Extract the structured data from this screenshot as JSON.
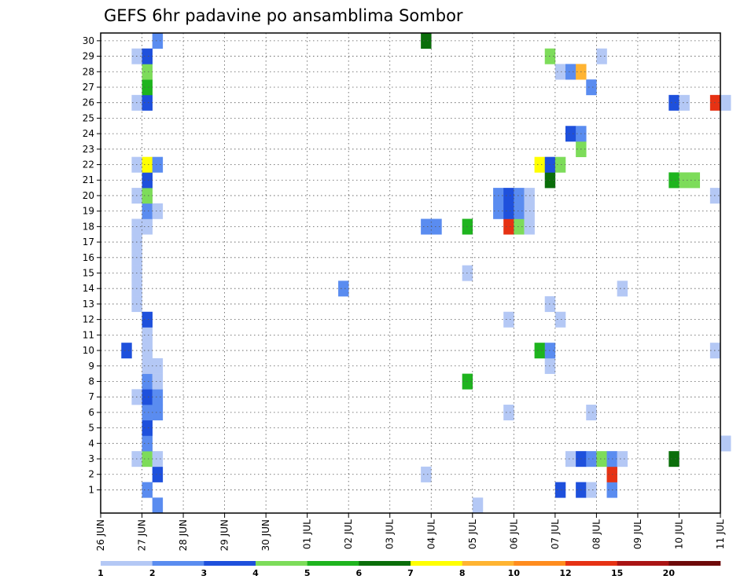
{
  "chart_data": {
    "type": "heatmap",
    "title": "GEFS 6hr padavine po ansamblima Sombor",
    "xlabel": "",
    "ylabel": "",
    "y_categories": [
      "1",
      "2",
      "3",
      "4",
      "5",
      "6",
      "7",
      "8",
      "9",
      "10",
      "11",
      "12",
      "13",
      "14",
      "15",
      "16",
      "17",
      "18",
      "19",
      "20",
      "21",
      "22",
      "23",
      "24",
      "25",
      "26",
      "27",
      "28",
      "29",
      "30"
    ],
    "x_ticks": [
      "26 JUN",
      "27 JUN",
      "28 JUN",
      "29 JUN",
      "30 JUN",
      "01 JUL",
      "02 JUL",
      "03 JUL",
      "04 JUL",
      "05 JUL",
      "06 JUL",
      "07 JUL",
      "08 JUL",
      "09 JUL",
      "10 JUL",
      "11 JUL"
    ],
    "x_step_hours": 6,
    "grid": true,
    "colorbar": {
      "levels": [
        "1",
        "2",
        "3",
        "4",
        "5",
        "6",
        "7",
        "8",
        "10",
        "12",
        "15",
        "20"
      ],
      "colors": [
        "#b4c8f5",
        "#5a8cf0",
        "#1e50dc",
        "#7ddc5a",
        "#1eb41e",
        "#0a6e0a",
        "#ffff00",
        "#ffb432",
        "#ff8c1e",
        "#e63214",
        "#aa1414",
        "#6e0a0a"
      ]
    },
    "cells": [
      {
        "member": 1,
        "day": "27 JUN",
        "step": 0,
        "value": 2,
        "color_index": 1
      },
      {
        "member": 1,
        "day": "07 JUL",
        "step": 0,
        "value": 3,
        "color_index": 2
      },
      {
        "member": 1,
        "day": "07 JUL",
        "step": 2,
        "value": 3,
        "color_index": 2
      },
      {
        "member": 1,
        "day": "07 JUL",
        "step": 3,
        "value": 1,
        "color_index": 0
      },
      {
        "member": 1,
        "day": "08 JUL",
        "step": 1,
        "value": 2,
        "color_index": 1
      },
      {
        "member": 2,
        "day": "27 JUN",
        "step": 1,
        "value": 3,
        "color_index": 2
      },
      {
        "member": 2,
        "day": "03 JUL",
        "step": 3,
        "value": 1,
        "color_index": 0
      },
      {
        "member": 2,
        "day": "08 JUL",
        "step": 1,
        "value": 12,
        "color_index": 9
      },
      {
        "member": 3,
        "day": "26 JUN",
        "step": 3,
        "value": 1,
        "color_index": 0
      },
      {
        "member": 3,
        "day": "27 JUN",
        "step": 0,
        "value": 4,
        "color_index": 3
      },
      {
        "member": 3,
        "day": "27 JUN",
        "step": 1,
        "value": 1,
        "color_index": 0
      },
      {
        "member": 3,
        "day": "07 JUL",
        "step": 1,
        "value": 1,
        "color_index": 0
      },
      {
        "member": 3,
        "day": "07 JUL",
        "step": 2,
        "value": 3,
        "color_index": 2
      },
      {
        "member": 3,
        "day": "07 JUL",
        "step": 3,
        "value": 2,
        "color_index": 1
      },
      {
        "member": 3,
        "day": "08 JUL",
        "step": 0,
        "value": 4,
        "color_index": 3
      },
      {
        "member": 3,
        "day": "08 JUL",
        "step": 1,
        "value": 2,
        "color_index": 1
      },
      {
        "member": 3,
        "day": "08 JUL",
        "step": 2,
        "value": 1,
        "color_index": 0
      },
      {
        "member": 3,
        "day": "09 JUL",
        "step": 3,
        "value": 6,
        "color_index": 5
      },
      {
        "member": 4,
        "day": "27 JUN",
        "step": 0,
        "value": 2,
        "color_index": 1
      },
      {
        "member": 4,
        "day": "11 JUL",
        "step": 0,
        "value": 1,
        "color_index": 0
      },
      {
        "member": 5,
        "day": "27 JUN",
        "step": 0,
        "value": 3,
        "color_index": 2
      },
      {
        "member": 6,
        "day": "27 JUN",
        "step": 0,
        "value": 2,
        "color_index": 1
      },
      {
        "member": 6,
        "day": "27 JUN",
        "step": 1,
        "value": 2,
        "color_index": 1
      },
      {
        "member": 6,
        "day": "05 JUL",
        "step": 3,
        "value": 1,
        "color_index": 0
      },
      {
        "member": 6,
        "day": "07 JUL",
        "step": 3,
        "value": 1,
        "color_index": 0
      },
      {
        "member": 7,
        "day": "26 JUN",
        "step": 3,
        "value": 1,
        "color_index": 0
      },
      {
        "member": 7,
        "day": "27 JUN",
        "step": 0,
        "value": 3,
        "color_index": 2
      },
      {
        "member": 7,
        "day": "27 JUN",
        "step": 1,
        "value": 2,
        "color_index": 1
      },
      {
        "member": 8,
        "day": "27 JUN",
        "step": 0,
        "value": 2,
        "color_index": 1
      },
      {
        "member": 8,
        "day": "27 JUN",
        "step": 1,
        "value": 1,
        "color_index": 0
      },
      {
        "member": 8,
        "day": "04 JUL",
        "step": 3,
        "value": 5,
        "color_index": 4
      },
      {
        "member": 9,
        "day": "27 JUN",
        "step": 0,
        "value": 1,
        "color_index": 0
      },
      {
        "member": 9,
        "day": "27 JUN",
        "step": 1,
        "value": 1,
        "color_index": 0
      },
      {
        "member": 9,
        "day": "06 JUL",
        "step": 3,
        "value": 1,
        "color_index": 0
      },
      {
        "member": 10,
        "day": "26 JUN",
        "step": 2,
        "value": 3,
        "color_index": 2
      },
      {
        "member": 10,
        "day": "27 JUN",
        "step": 0,
        "value": 1,
        "color_index": 0
      },
      {
        "member": 10,
        "day": "06 JUL",
        "step": 2,
        "value": 5,
        "color_index": 4
      },
      {
        "member": 10,
        "day": "06 JUL",
        "step": 3,
        "value": 2,
        "color_index": 1
      },
      {
        "member": 10,
        "day": "10 JUL",
        "step": 3,
        "value": 1,
        "color_index": 0
      },
      {
        "member": 11,
        "day": "27 JUN",
        "step": 0,
        "value": 1,
        "color_index": 0
      },
      {
        "member": 12,
        "day": "27 JUN",
        "step": 0,
        "value": 3,
        "color_index": 2
      },
      {
        "member": 12,
        "day": "05 JUL",
        "step": 3,
        "value": 1,
        "color_index": 0
      },
      {
        "member": 12,
        "day": "07 JUL",
        "step": 0,
        "value": 1,
        "color_index": 0
      },
      {
        "member": 13,
        "day": "26 JUN",
        "step": 3,
        "value": 1,
        "color_index": 0
      },
      {
        "member": 13,
        "day": "06 JUL",
        "step": 3,
        "value": 1,
        "color_index": 0
      },
      {
        "member": 14,
        "day": "26 JUN",
        "step": 3,
        "value": 1,
        "color_index": 0
      },
      {
        "member": 14,
        "day": "01 JUL",
        "step": 3,
        "value": 2,
        "color_index": 1
      },
      {
        "member": 14,
        "day": "08 JUL",
        "step": 2,
        "value": 1,
        "color_index": 0
      },
      {
        "member": 15,
        "day": "26 JUN",
        "step": 3,
        "value": 1,
        "color_index": 0
      },
      {
        "member": 15,
        "day": "04 JUL",
        "step": 3,
        "value": 1,
        "color_index": 0
      },
      {
        "member": 16,
        "day": "26 JUN",
        "step": 3,
        "value": 1,
        "color_index": 0
      },
      {
        "member": 17,
        "day": "26 JUN",
        "step": 3,
        "value": 1,
        "color_index": 0
      },
      {
        "member": 18,
        "day": "26 JUN",
        "step": 3,
        "value": 1,
        "color_index": 0
      },
      {
        "member": 18,
        "day": "27 JUN",
        "step": 0,
        "value": 1,
        "color_index": 0
      },
      {
        "member": 18,
        "day": "03 JUL",
        "step": 3,
        "value": 2,
        "color_index": 1
      },
      {
        "member": 18,
        "day": "04 JUL",
        "step": 0,
        "value": 2,
        "color_index": 1
      },
      {
        "member": 18,
        "day": "04 JUL",
        "step": 3,
        "value": 5,
        "color_index": 4
      },
      {
        "member": 18,
        "day": "05 JUL",
        "step": 3,
        "value": 12,
        "color_index": 9
      },
      {
        "member": 18,
        "day": "06 JUL",
        "step": 0,
        "value": 4,
        "color_index": 3
      },
      {
        "member": 18,
        "day": "06 JUL",
        "step": 1,
        "value": 1,
        "color_index": 0
      },
      {
        "member": 19,
        "day": "27 JUN",
        "step": 0,
        "value": 2,
        "color_index": 1
      },
      {
        "member": 19,
        "day": "27 JUN",
        "step": 1,
        "value": 1,
        "color_index": 0
      },
      {
        "member": 19,
        "day": "05 JUL",
        "step": 2,
        "value": 2,
        "color_index": 1
      },
      {
        "member": 19,
        "day": "05 JUL",
        "step": 3,
        "value": 3,
        "color_index": 2
      },
      {
        "member": 19,
        "day": "06 JUL",
        "step": 0,
        "value": 2,
        "color_index": 1
      },
      {
        "member": 19,
        "day": "06 JUL",
        "step": 1,
        "value": 1,
        "color_index": 0
      },
      {
        "member": 20,
        "day": "26 JUN",
        "step": 3,
        "value": 1,
        "color_index": 0
      },
      {
        "member": 20,
        "day": "27 JUN",
        "step": 0,
        "value": 4,
        "color_index": 3
      },
      {
        "member": 20,
        "day": "05 JUL",
        "step": 2,
        "value": 2,
        "color_index": 1
      },
      {
        "member": 20,
        "day": "05 JUL",
        "step": 3,
        "value": 3,
        "color_index": 2
      },
      {
        "member": 20,
        "day": "06 JUL",
        "step": 0,
        "value": 2,
        "color_index": 1
      },
      {
        "member": 20,
        "day": "06 JUL",
        "step": 1,
        "value": 1,
        "color_index": 0
      },
      {
        "member": 20,
        "day": "10 JUL",
        "step": 3,
        "value": 1,
        "color_index": 0
      },
      {
        "member": 21,
        "day": "27 JUN",
        "step": 0,
        "value": 3,
        "color_index": 2
      },
      {
        "member": 21,
        "day": "06 JUL",
        "step": 3,
        "value": 6,
        "color_index": 5
      },
      {
        "member": 21,
        "day": "09 JUL",
        "step": 3,
        "value": 5,
        "color_index": 4
      },
      {
        "member": 21,
        "day": "10 JUL",
        "step": 0,
        "value": 4,
        "color_index": 3
      },
      {
        "member": 21,
        "day": "10 JUL",
        "step": 1,
        "value": 4,
        "color_index": 3
      },
      {
        "member": 22,
        "day": "26 JUN",
        "step": 3,
        "value": 1,
        "color_index": 0
      },
      {
        "member": 22,
        "day": "27 JUN",
        "step": 0,
        "value": 7,
        "color_index": 6
      },
      {
        "member": 22,
        "day": "27 JUN",
        "step": 1,
        "value": 2,
        "color_index": 1
      },
      {
        "member": 22,
        "day": "06 JUL",
        "step": 2,
        "value": 7,
        "color_index": 6
      },
      {
        "member": 22,
        "day": "06 JUL",
        "step": 3,
        "value": 3,
        "color_index": 2
      },
      {
        "member": 22,
        "day": "07 JUL",
        "step": 0,
        "value": 4,
        "color_index": 3
      },
      {
        "member": 23,
        "day": "07 JUL",
        "step": 2,
        "value": 4,
        "color_index": 3
      },
      {
        "member": 24,
        "day": "07 JUL",
        "step": 1,
        "value": 3,
        "color_index": 2
      },
      {
        "member": 24,
        "day": "07 JUL",
        "step": 2,
        "value": 2,
        "color_index": 1
      },
      {
        "member": 26,
        "day": "26 JUN",
        "step": 3,
        "value": 1,
        "color_index": 0
      },
      {
        "member": 26,
        "day": "27 JUN",
        "step": 0,
        "value": 3,
        "color_index": 2
      },
      {
        "member": 26,
        "day": "09 JUL",
        "step": 3,
        "value": 3,
        "color_index": 2
      },
      {
        "member": 26,
        "day": "10 JUL",
        "step": 0,
        "value": 1,
        "color_index": 0
      },
      {
        "member": 26,
        "day": "10 JUL",
        "step": 3,
        "value": 12,
        "color_index": 9
      },
      {
        "member": 26,
        "day": "11 JUL",
        "step": 0,
        "value": 1,
        "color_index": 0
      },
      {
        "member": 27,
        "day": "27 JUN",
        "step": 0,
        "value": 5,
        "color_index": 4
      },
      {
        "member": 27,
        "day": "07 JUL",
        "step": 3,
        "value": 2,
        "color_index": 1
      },
      {
        "member": 28,
        "day": "27 JUN",
        "step": 0,
        "value": 4,
        "color_index": 3
      },
      {
        "member": 28,
        "day": "07 JUL",
        "step": 0,
        "value": 1,
        "color_index": 0
      },
      {
        "member": 28,
        "day": "07 JUL",
        "step": 1,
        "value": 2,
        "color_index": 1
      },
      {
        "member": 28,
        "day": "07 JUL",
        "step": 2,
        "value": 8,
        "color_index": 7
      },
      {
        "member": 29,
        "day": "26 JUN",
        "step": 3,
        "value": 1,
        "color_index": 0
      },
      {
        "member": 29,
        "day": "27 JUN",
        "step": 0,
        "value": 3,
        "color_index": 2
      },
      {
        "member": 29,
        "day": "06 JUL",
        "step": 3,
        "value": 4,
        "color_index": 3
      },
      {
        "member": 29,
        "day": "08 JUL",
        "step": 0,
        "value": 1,
        "color_index": 0
      },
      {
        "member": 30,
        "day": "27 JUN",
        "step": 1,
        "value": 2,
        "color_index": 1
      },
      {
        "member": 30,
        "day": "03 JUL",
        "step": 3,
        "value": 6,
        "color_index": 5
      },
      {
        "member": 0,
        "day": "27 JUN",
        "step": 1,
        "value": 2,
        "color_index": 1
      },
      {
        "member": 0,
        "day": "05 JUL",
        "step": 0,
        "value": 1,
        "color_index": 0
      }
    ]
  }
}
